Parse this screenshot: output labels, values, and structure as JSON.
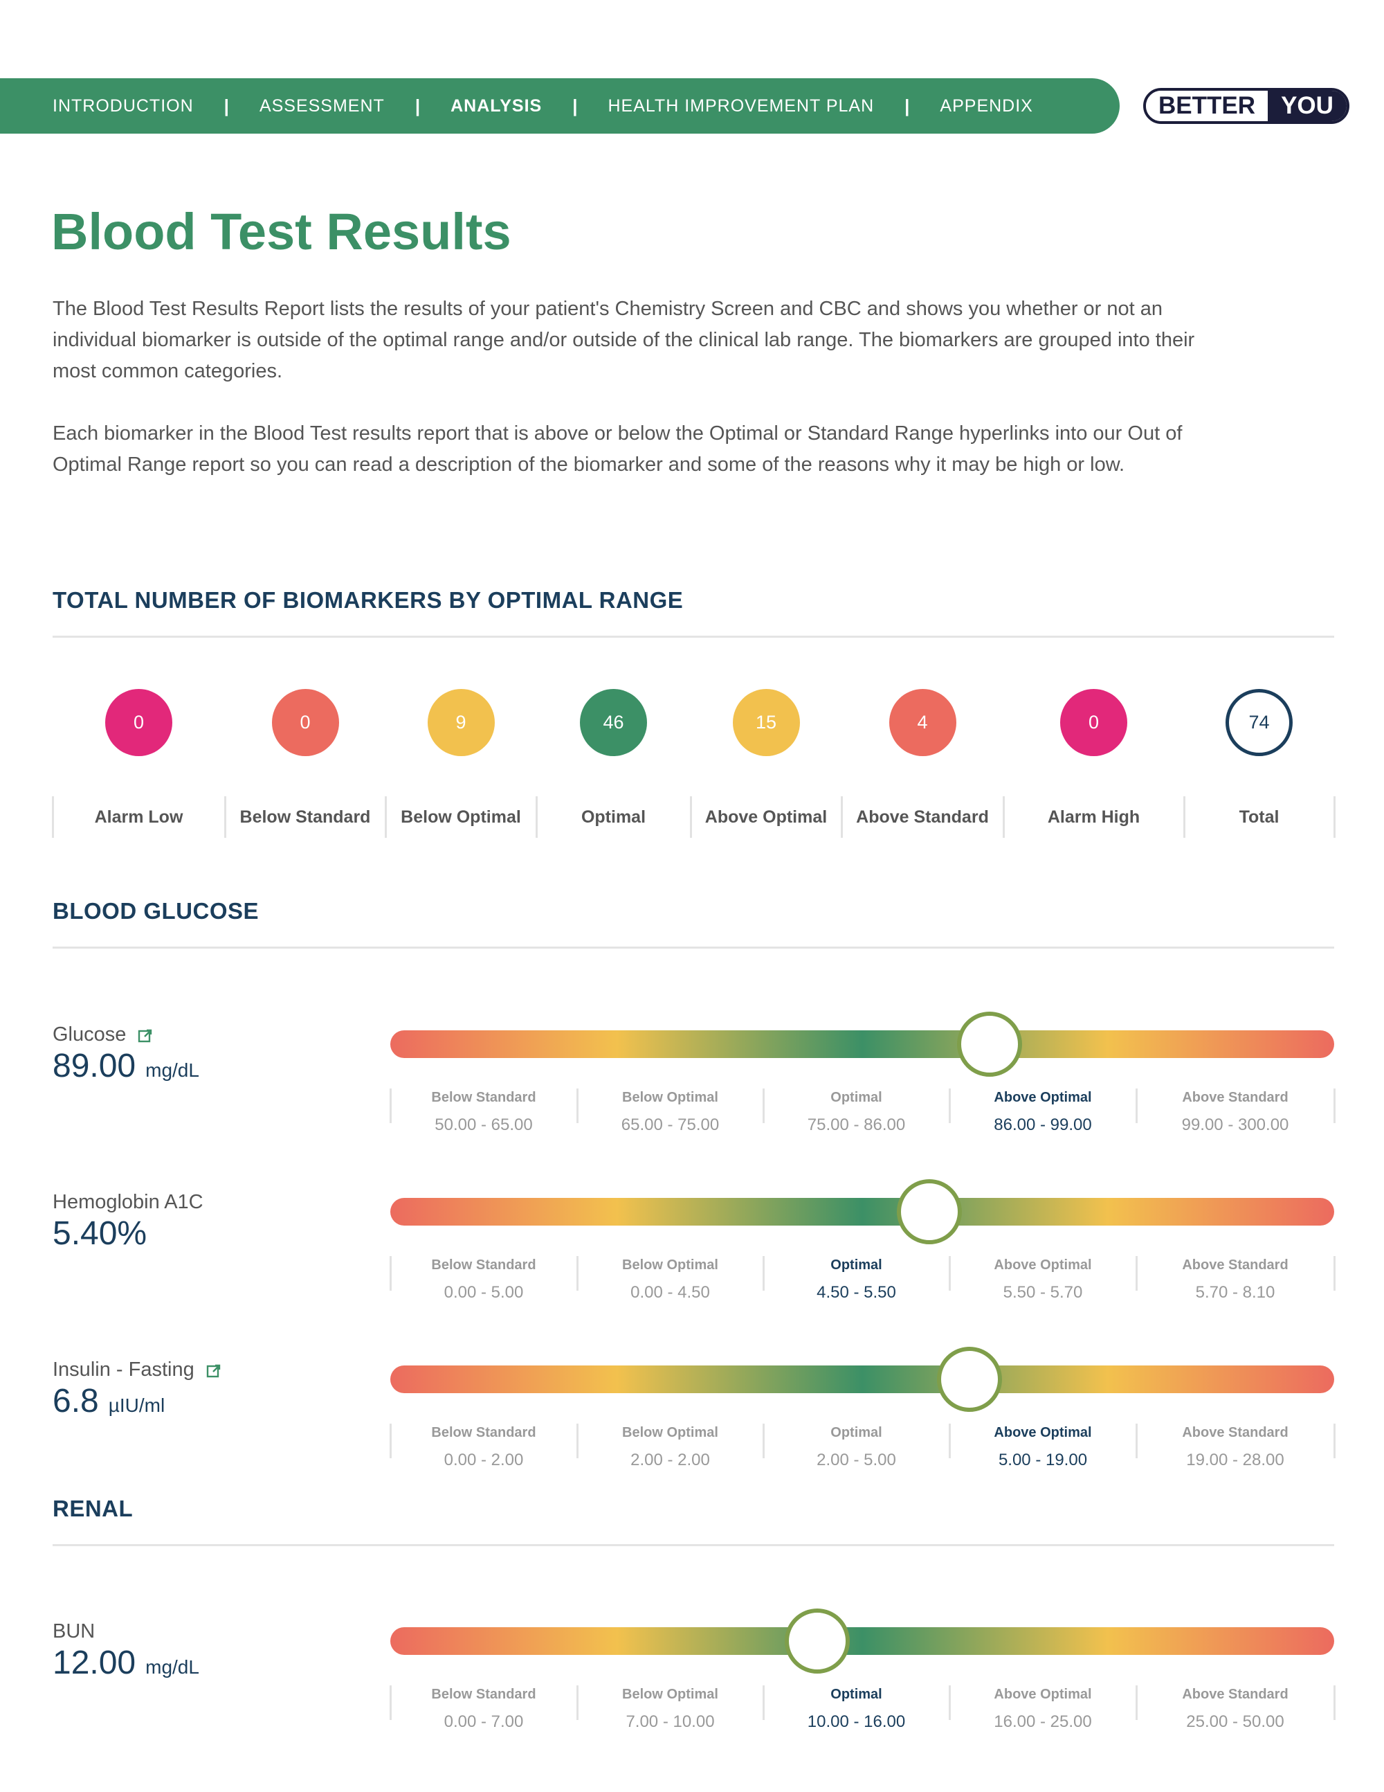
{
  "nav": {
    "items": [
      {
        "label": "INTRODUCTION",
        "active": false
      },
      {
        "label": "ASSESSMENT",
        "active": false
      },
      {
        "label": "ANALYSIS",
        "active": true
      },
      {
        "label": "HEALTH IMPROVEMENT PLAN",
        "active": false
      },
      {
        "label": "APPENDIX",
        "active": false
      }
    ],
    "separator": "|"
  },
  "logo": {
    "left": "BETTER",
    "right": "YOU"
  },
  "page_title": "Blood Test Results",
  "intro": {
    "p1": "The Blood Test Results Report lists the results of your patient's Chemistry Screen and CBC and shows you whether or not an individual biomarker is outside of the optimal range and/or outside of the clinical lab range. The biomarkers are grouped into their most common categories.",
    "p2": "Each biomarker in the Blood Test results report that is above or below the Optimal or Standard Range hyperlinks into our Out of Optimal Range report so you can read a description of the biomarker and some of the reasons why it may be high or low."
  },
  "summary": {
    "title": "TOTAL NUMBER OF BIOMARKERS BY OPTIMAL RANGE",
    "items": [
      {
        "label": "Alarm Low",
        "count": "0",
        "color": "#e2287a"
      },
      {
        "label": "Below Standard",
        "count": "0",
        "color": "#ec6b5f"
      },
      {
        "label": "Below Optimal",
        "count": "9",
        "color": "#f2c14e"
      },
      {
        "label": "Optimal",
        "count": "46",
        "color": "#3c9066"
      },
      {
        "label": "Above Optimal",
        "count": "15",
        "color": "#f2c14e"
      },
      {
        "label": "Above Standard",
        "count": "4",
        "color": "#ec6b5f"
      },
      {
        "label": "Alarm High",
        "count": "0",
        "color": "#e2287a"
      },
      {
        "label": "Total",
        "count": "74",
        "color": "#1b3e5c"
      }
    ]
  },
  "sections": [
    {
      "title": "BLOOD GLUCOSE",
      "biomarkers": [
        {
          "name": "Glucose",
          "link": true,
          "value": "89.00",
          "unit": "mg/dL",
          "marker_position": 0.635,
          "ranges": [
            {
              "label": "Below Standard",
              "value": "50.00 - 65.00"
            },
            {
              "label": "Below Optimal",
              "value": "65.00 - 75.00"
            },
            {
              "label": "Optimal",
              "value": "75.00 - 86.00"
            },
            {
              "label": "Above Optimal",
              "value": "86.00 - 99.00",
              "active": true
            },
            {
              "label": "Above Standard",
              "value": "99.00 - 300.00"
            }
          ]
        },
        {
          "name": "Hemoglobin A1C",
          "link": false,
          "value": "5.40%",
          "unit": "",
          "marker_position": 0.571,
          "ranges": [
            {
              "label": "Below Standard",
              "value": "0.00 - 5.00"
            },
            {
              "label": "Below Optimal",
              "value": "0.00 - 4.50"
            },
            {
              "label": "Optimal",
              "value": "4.50 - 5.50",
              "active": true
            },
            {
              "label": "Above Optimal",
              "value": "5.50 - 5.70"
            },
            {
              "label": "Above Standard",
              "value": "5.70 - 8.10"
            }
          ]
        },
        {
          "name": "Insulin - Fasting",
          "link": true,
          "value": "6.8",
          "unit": "µIU/ml",
          "marker_position": 0.614,
          "ranges": [
            {
              "label": "Below Standard",
              "value": "0.00 - 2.00"
            },
            {
              "label": "Below Optimal",
              "value": "2.00 - 2.00"
            },
            {
              "label": "Optimal",
              "value": "2.00 - 5.00"
            },
            {
              "label": "Above Optimal",
              "value": "5.00 - 19.00",
              "active": true
            },
            {
              "label": "Above Standard",
              "value": "19.00 - 28.00"
            }
          ]
        }
      ]
    },
    {
      "title": "RENAL",
      "biomarkers": [
        {
          "name": "BUN",
          "link": false,
          "value": "12.00",
          "unit": "mg/dL",
          "marker_position": 0.452,
          "ranges": [
            {
              "label": "Below Standard",
              "value": "0.00 - 7.00"
            },
            {
              "label": "Below Optimal",
              "value": "7.00 - 10.00"
            },
            {
              "label": "Optimal",
              "value": "10.00 - 16.00",
              "active": true
            },
            {
              "label": "Above Optimal",
              "value": "16.00 - 25.00"
            },
            {
              "label": "Above Standard",
              "value": "25.00 - 50.00"
            }
          ]
        }
      ]
    }
  ]
}
